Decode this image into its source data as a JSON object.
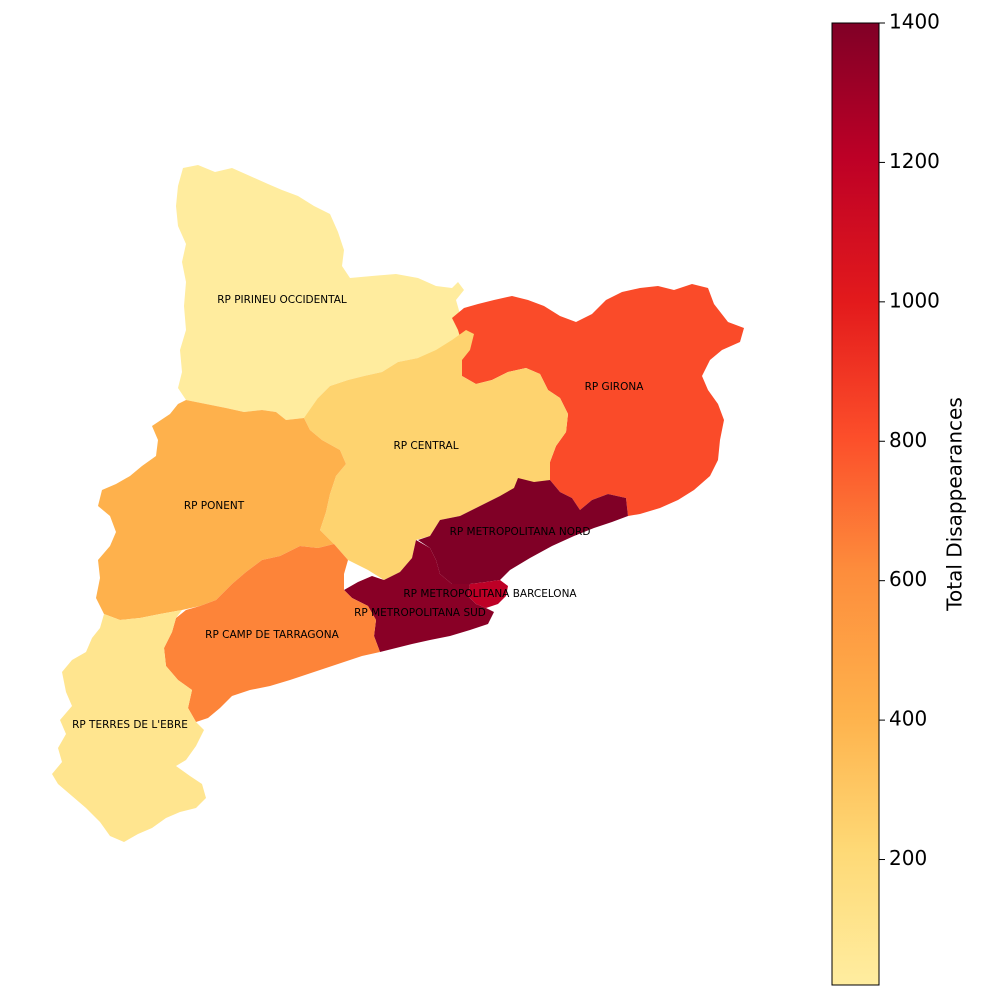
{
  "chart_data": {
    "type": "choropleth",
    "colormap": "YlOrRd",
    "colorbar": {
      "label": "Total Disappearances",
      "min": 20,
      "max": 1400,
      "ticks": [
        200,
        400,
        600,
        800,
        1000,
        1200,
        1400
      ]
    },
    "regions": [
      {
        "name": "RP PIRINEU OCCIDENTAL",
        "value": 30
      },
      {
        "name": "RP GIRONA",
        "value": 820
      },
      {
        "name": "RP CENTRAL",
        "value": 250
      },
      {
        "name": "RP PONENT",
        "value": 420
      },
      {
        "name": "RP METROPOLITANA NORD",
        "value": 1400
      },
      {
        "name": "RP METROPOLITANA BARCELONA",
        "value": 1200
      },
      {
        "name": "RP METROPOLITANA SUD",
        "value": 1370
      },
      {
        "name": "RP CAMP DE TARRAGONA",
        "value": 640
      },
      {
        "name": "RP TERRES DE L'EBRE",
        "value": 100
      }
    ]
  }
}
